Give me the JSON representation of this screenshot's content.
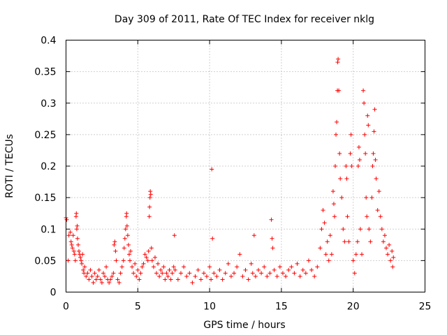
{
  "chart_data": {
    "type": "scatter",
    "title": "Day 309 of 2011, Rate Of TEC Index for receiver nklg",
    "xlabel": "GPS time / hours",
    "ylabel": "ROTI / TECUs",
    "xlim": [
      0,
      25
    ],
    "ylim": [
      0,
      0.4
    ],
    "xticks": [
      0,
      5,
      10,
      15,
      20,
      25
    ],
    "xtick_labels": [
      "0",
      "5",
      "10",
      "15",
      "20",
      "25"
    ],
    "yticks": [
      0,
      0.05,
      0.1,
      0.15,
      0.2,
      0.25,
      0.3,
      0.35,
      0.4
    ],
    "ytick_labels": [
      "0",
      "0.05",
      "0.1",
      "0.15",
      "0.2",
      "0.25",
      "0.3",
      "0.35",
      "0.4"
    ],
    "grid": true,
    "marker": "+",
    "color": "#ff0000",
    "series": [
      {
        "name": "ROTI",
        "points": [
          [
            0.0,
            0.118
          ],
          [
            0.05,
            0.115
          ],
          [
            0.15,
            0.05
          ],
          [
            0.2,
            0.09
          ],
          [
            0.3,
            0.095
          ],
          [
            0.35,
            0.08
          ],
          [
            0.4,
            0.075
          ],
          [
            0.45,
            0.07
          ],
          [
            0.5,
            0.09
          ],
          [
            0.55,
            0.065
          ],
          [
            0.6,
            0.06
          ],
          [
            0.65,
            0.05
          ],
          [
            0.7,
            0.12
          ],
          [
            0.72,
            0.125
          ],
          [
            0.75,
            0.1
          ],
          [
            0.78,
            0.105
          ],
          [
            0.8,
            0.085
          ],
          [
            0.85,
            0.075
          ],
          [
            0.9,
            0.065
          ],
          [
            0.95,
            0.06
          ],
          [
            1.0,
            0.055
          ],
          [
            1.05,
            0.05
          ],
          [
            1.1,
            0.045
          ],
          [
            1.15,
            0.06
          ],
          [
            1.2,
            0.035
          ],
          [
            1.25,
            0.03
          ],
          [
            1.3,
            0.04
          ],
          [
            1.4,
            0.025
          ],
          [
            1.5,
            0.03
          ],
          [
            1.6,
            0.02
          ],
          [
            1.7,
            0.035
          ],
          [
            1.8,
            0.025
          ],
          [
            1.9,
            0.015
          ],
          [
            2.0,
            0.03
          ],
          [
            2.1,
            0.02
          ],
          [
            2.2,
            0.025
          ],
          [
            2.3,
            0.035
          ],
          [
            2.4,
            0.02
          ],
          [
            2.5,
            0.015
          ],
          [
            2.6,
            0.03
          ],
          [
            2.7,
            0.025
          ],
          [
            2.8,
            0.04
          ],
          [
            2.9,
            0.02
          ],
          [
            3.0,
            0.015
          ],
          [
            3.1,
            0.02
          ],
          [
            3.2,
            0.025
          ],
          [
            3.3,
            0.03
          ],
          [
            3.35,
            0.075
          ],
          [
            3.4,
            0.08
          ],
          [
            3.45,
            0.065
          ],
          [
            3.5,
            0.05
          ],
          [
            3.6,
            0.02
          ],
          [
            3.7,
            0.015
          ],
          [
            3.8,
            0.03
          ],
          [
            3.9,
            0.04
          ],
          [
            4.0,
            0.05
          ],
          [
            4.05,
            0.07
          ],
          [
            4.1,
            0.085
          ],
          [
            4.15,
            0.1
          ],
          [
            4.2,
            0.12
          ],
          [
            4.22,
            0.125
          ],
          [
            4.25,
            0.105
          ],
          [
            4.3,
            0.09
          ],
          [
            4.35,
            0.075
          ],
          [
            4.4,
            0.06
          ],
          [
            4.45,
            0.05
          ],
          [
            4.5,
            0.065
          ],
          [
            4.6,
            0.04
          ],
          [
            4.7,
            0.03
          ],
          [
            4.8,
            0.045
          ],
          [
            4.9,
            0.025
          ],
          [
            5.0,
            0.035
          ],
          [
            5.1,
            0.02
          ],
          [
            5.2,
            0.03
          ],
          [
            5.3,
            0.04
          ],
          [
            5.4,
            0.045
          ],
          [
            5.5,
            0.06
          ],
          [
            5.6,
            0.055
          ],
          [
            5.7,
            0.05
          ],
          [
            5.75,
            0.065
          ],
          [
            5.8,
            0.12
          ],
          [
            5.82,
            0.135
          ],
          [
            5.85,
            0.15
          ],
          [
            5.87,
            0.16
          ],
          [
            5.9,
            0.155
          ],
          [
            5.95,
            0.07
          ],
          [
            6.0,
            0.05
          ],
          [
            6.1,
            0.04
          ],
          [
            6.2,
            0.055
          ],
          [
            6.3,
            0.03
          ],
          [
            6.4,
            0.045
          ],
          [
            6.5,
            0.025
          ],
          [
            6.6,
            0.035
          ],
          [
            6.7,
            0.03
          ],
          [
            6.8,
            0.04
          ],
          [
            6.9,
            0.02
          ],
          [
            7.0,
            0.03
          ],
          [
            7.1,
            0.025
          ],
          [
            7.2,
            0.035
          ],
          [
            7.3,
            0.02
          ],
          [
            7.4,
            0.03
          ],
          [
            7.5,
            0.04
          ],
          [
            7.55,
            0.09
          ],
          [
            7.6,
            0.035
          ],
          [
            7.8,
            0.02
          ],
          [
            8.0,
            0.03
          ],
          [
            8.2,
            0.04
          ],
          [
            8.4,
            0.025
          ],
          [
            8.6,
            0.03
          ],
          [
            8.8,
            0.015
          ],
          [
            9.0,
            0.025
          ],
          [
            9.2,
            0.035
          ],
          [
            9.4,
            0.02
          ],
          [
            9.6,
            0.03
          ],
          [
            9.8,
            0.025
          ],
          [
            10.0,
            0.04
          ],
          [
            10.1,
            0.02
          ],
          [
            10.15,
            0.195
          ],
          [
            10.2,
            0.085
          ],
          [
            10.3,
            0.03
          ],
          [
            10.5,
            0.025
          ],
          [
            10.7,
            0.035
          ],
          [
            10.9,
            0.02
          ],
          [
            11.1,
            0.03
          ],
          [
            11.3,
            0.045
          ],
          [
            11.5,
            0.025
          ],
          [
            11.7,
            0.03
          ],
          [
            11.9,
            0.04
          ],
          [
            12.1,
            0.06
          ],
          [
            12.3,
            0.025
          ],
          [
            12.5,
            0.035
          ],
          [
            12.7,
            0.02
          ],
          [
            12.9,
            0.045
          ],
          [
            13.0,
            0.03
          ],
          [
            13.1,
            0.09
          ],
          [
            13.2,
            0.025
          ],
          [
            13.4,
            0.035
          ],
          [
            13.6,
            0.03
          ],
          [
            13.8,
            0.04
          ],
          [
            14.0,
            0.025
          ],
          [
            14.2,
            0.03
          ],
          [
            14.3,
            0.115
          ],
          [
            14.35,
            0.085
          ],
          [
            14.4,
            0.07
          ],
          [
            14.5,
            0.035
          ],
          [
            14.7,
            0.025
          ],
          [
            14.9,
            0.04
          ],
          [
            15.1,
            0.03
          ],
          [
            15.3,
            0.025
          ],
          [
            15.5,
            0.035
          ],
          [
            15.7,
            0.04
          ],
          [
            15.9,
            0.03
          ],
          [
            16.1,
            0.045
          ],
          [
            16.3,
            0.025
          ],
          [
            16.5,
            0.035
          ],
          [
            16.7,
            0.03
          ],
          [
            16.9,
            0.05
          ],
          [
            17.1,
            0.035
          ],
          [
            17.3,
            0.025
          ],
          [
            17.5,
            0.04
          ],
          [
            17.7,
            0.07
          ],
          [
            17.8,
            0.1
          ],
          [
            17.9,
            0.13
          ],
          [
            18.0,
            0.11
          ],
          [
            18.1,
            0.06
          ],
          [
            18.2,
            0.08
          ],
          [
            18.3,
            0.05
          ],
          [
            18.4,
            0.09
          ],
          [
            18.5,
            0.06
          ],
          [
            18.6,
            0.16
          ],
          [
            18.65,
            0.14
          ],
          [
            18.7,
            0.12
          ],
          [
            18.75,
            0.2
          ],
          [
            18.8,
            0.25
          ],
          [
            18.85,
            0.27
          ],
          [
            18.9,
            0.32
          ],
          [
            18.92,
            0.365
          ],
          [
            18.95,
            0.37
          ],
          [
            19.0,
            0.32
          ],
          [
            19.05,
            0.22
          ],
          [
            19.1,
            0.18
          ],
          [
            19.2,
            0.15
          ],
          [
            19.3,
            0.1
          ],
          [
            19.4,
            0.08
          ],
          [
            19.5,
            0.2
          ],
          [
            19.55,
            0.18
          ],
          [
            19.6,
            0.12
          ],
          [
            19.7,
            0.08
          ],
          [
            19.8,
            0.22
          ],
          [
            19.85,
            0.25
          ],
          [
            19.9,
            0.2
          ],
          [
            20.0,
            0.05
          ],
          [
            20.1,
            0.03
          ],
          [
            20.2,
            0.06
          ],
          [
            20.3,
            0.08
          ],
          [
            20.35,
            0.2
          ],
          [
            20.4,
            0.23
          ],
          [
            20.45,
            0.21
          ],
          [
            20.5,
            0.1
          ],
          [
            20.6,
            0.06
          ],
          [
            20.7,
            0.32
          ],
          [
            20.75,
            0.3
          ],
          [
            20.8,
            0.25
          ],
          [
            20.85,
            0.22
          ],
          [
            20.9,
            0.15
          ],
          [
            20.95,
            0.12
          ],
          [
            21.0,
            0.28
          ],
          [
            21.05,
            0.265
          ],
          [
            21.1,
            0.1
          ],
          [
            21.2,
            0.08
          ],
          [
            21.3,
            0.15
          ],
          [
            21.35,
            0.2
          ],
          [
            21.4,
            0.22
          ],
          [
            21.45,
            0.255
          ],
          [
            21.5,
            0.29
          ],
          [
            21.55,
            0.21
          ],
          [
            21.6,
            0.18
          ],
          [
            21.7,
            0.13
          ],
          [
            21.8,
            0.16
          ],
          [
            21.9,
            0.12
          ],
          [
            22.0,
            0.1
          ],
          [
            22.1,
            0.08
          ],
          [
            22.2,
            0.09
          ],
          [
            22.3,
            0.07
          ],
          [
            22.4,
            0.06
          ],
          [
            22.5,
            0.075
          ],
          [
            22.6,
            0.05
          ],
          [
            22.7,
            0.065
          ],
          [
            22.75,
            0.04
          ],
          [
            22.8,
            0.055
          ]
        ]
      }
    ]
  }
}
